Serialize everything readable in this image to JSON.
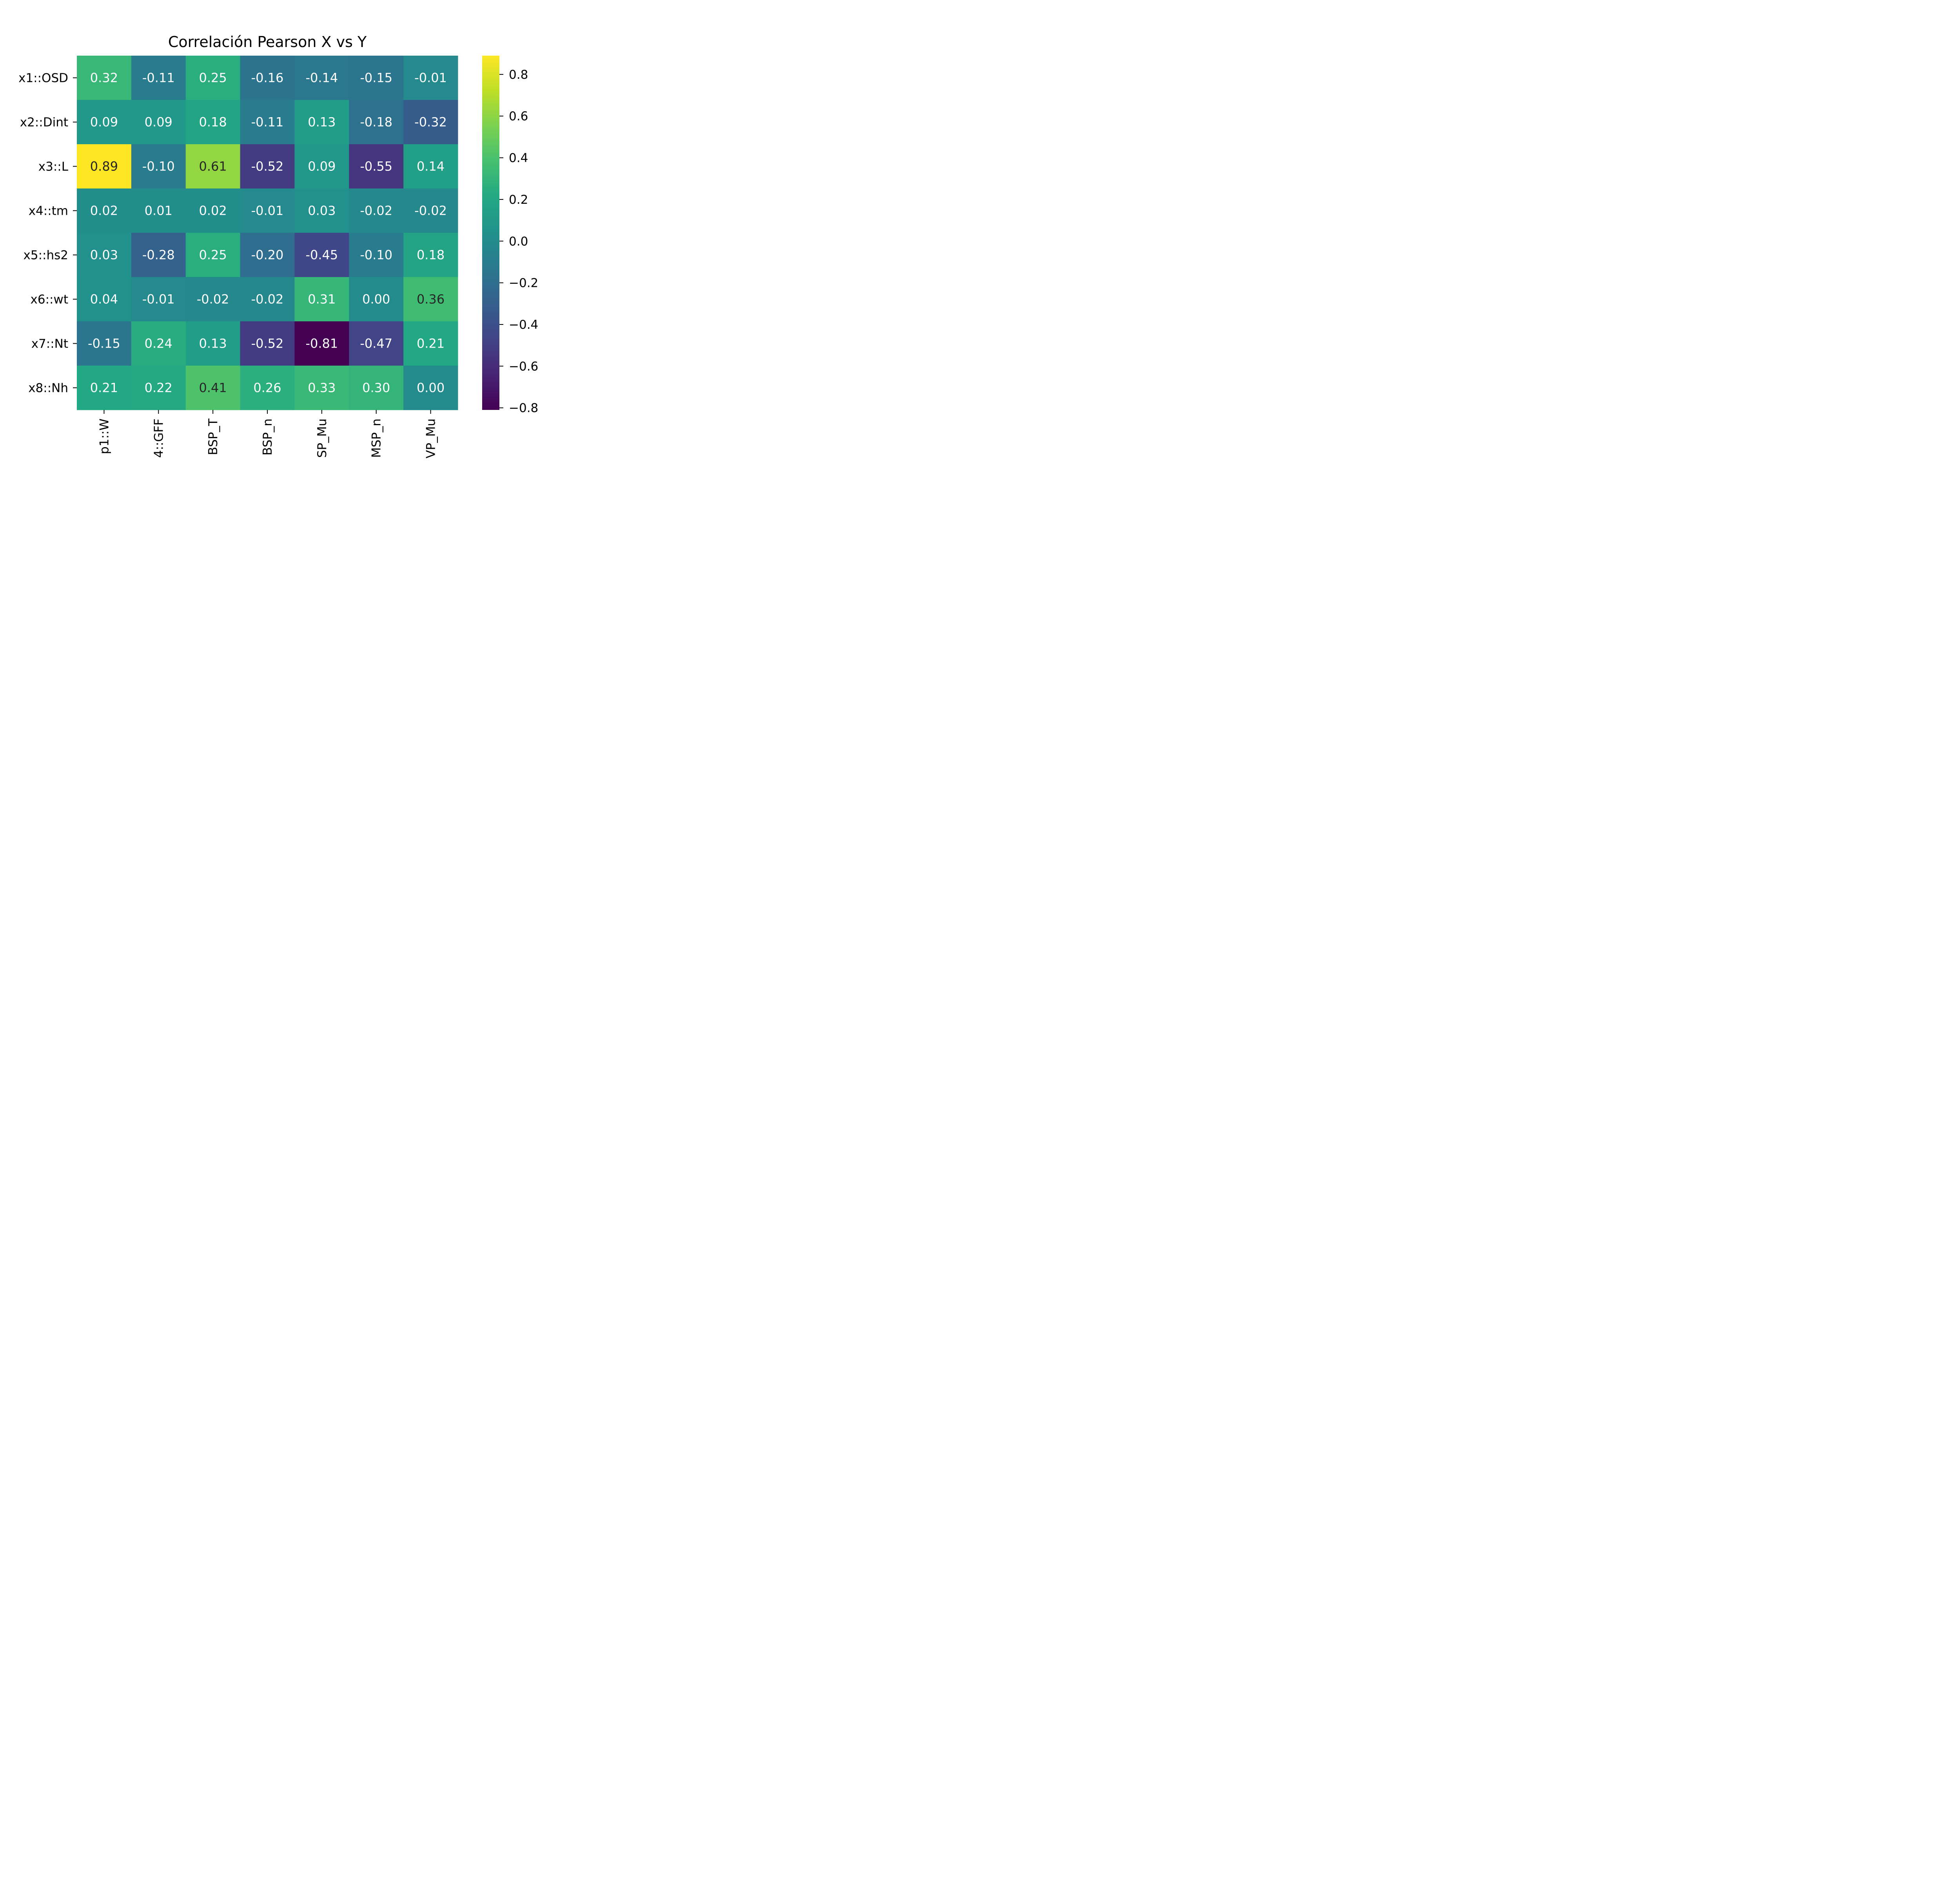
{
  "chart_data": {
    "type": "heatmap",
    "title": "Correlación Pearson X vs Y",
    "rows": [
      "x1::OSD",
      "x2::Dint",
      "x3::L",
      "x4::tm",
      "x5::hs2",
      "x6::wt",
      "x7::Nt",
      "x8::Nh"
    ],
    "columns": [
      "p1::W",
      "4::GFF",
      "BSP_T",
      "BSP_n",
      "SP_Mu",
      "MSP_n",
      "VP_Mu"
    ],
    "values": [
      [
        0.32,
        -0.11,
        0.25,
        -0.16,
        -0.14,
        -0.15,
        -0.01
      ],
      [
        0.09,
        0.09,
        0.18,
        -0.11,
        0.13,
        -0.18,
        -0.32
      ],
      [
        0.89,
        -0.1,
        0.61,
        -0.52,
        0.09,
        -0.55,
        0.14
      ],
      [
        0.02,
        0.01,
        0.02,
        -0.01,
        0.03,
        -0.02,
        -0.02
      ],
      [
        0.03,
        -0.28,
        0.25,
        -0.2,
        -0.45,
        -0.1,
        0.18
      ],
      [
        0.04,
        -0.01,
        -0.02,
        -0.02,
        0.31,
        0.0,
        0.36
      ],
      [
        -0.15,
        0.24,
        0.13,
        -0.52,
        -0.81,
        -0.47,
        0.21
      ],
      [
        0.21,
        0.22,
        0.41,
        0.26,
        0.33,
        0.3,
        0.0
      ]
    ],
    "value_labels": [
      [
        "0.32",
        "-0.11",
        "0.25",
        "-0.16",
        "-0.14",
        "-0.15",
        "-0.01"
      ],
      [
        "0.09",
        "0.09",
        "0.18",
        "-0.11",
        "0.13",
        "-0.18",
        "-0.32"
      ],
      [
        "0.89",
        "-0.10",
        "0.61",
        "-0.52",
        "0.09",
        "-0.55",
        "0.14"
      ],
      [
        "0.02",
        "0.01",
        "0.02",
        "-0.01",
        "0.03",
        "-0.02",
        "-0.02"
      ],
      [
        "0.03",
        "-0.28",
        "0.25",
        "-0.20",
        "-0.45",
        "-0.10",
        "0.18"
      ],
      [
        "0.04",
        "-0.01",
        "-0.02",
        "-0.02",
        "0.31",
        "0.00",
        "0.36"
      ],
      [
        "-0.15",
        "0.24",
        "0.13",
        "-0.52",
        "-0.81",
        "-0.47",
        "0.21"
      ],
      [
        "0.21",
        "0.22",
        "0.41",
        "0.26",
        "0.33",
        "0.30",
        "0.00"
      ]
    ],
    "colorbar": {
      "range": [
        -0.81,
        0.89
      ],
      "ticks": [
        0.8,
        0.6,
        0.4,
        0.2,
        0.0,
        -0.2,
        -0.4,
        -0.6,
        -0.8
      ],
      "tick_labels": [
        "0.8",
        "0.6",
        "0.4",
        "0.2",
        "0.0",
        "−0.2",
        "−0.4",
        "−0.6",
        "−0.8"
      ],
      "colormap": "viridis"
    },
    "text_colors": {
      "light": "#ffffff",
      "dark": "#262626"
    }
  }
}
